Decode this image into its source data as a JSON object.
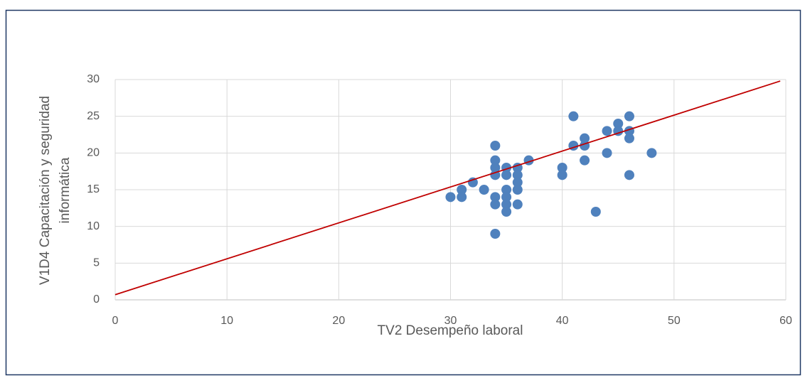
{
  "chart_data": {
    "type": "scatter",
    "xlabel": "TV2 Desempeño laboral",
    "ylabel": [
      "V1D4 Capacitación y seguridad",
      "informática"
    ],
    "x": [
      30,
      31,
      31,
      32,
      33,
      34,
      34,
      34,
      34,
      34,
      34,
      34,
      35,
      35,
      35,
      35,
      35,
      35,
      36,
      36,
      36,
      36,
      36,
      37,
      40,
      40,
      41,
      41,
      42,
      42,
      42,
      43,
      44,
      44,
      45,
      45,
      46,
      46,
      46,
      46,
      48
    ],
    "values": [
      14,
      15,
      14,
      16,
      15,
      21,
      19,
      18,
      17,
      14,
      13,
      9,
      18,
      17,
      15,
      14,
      13,
      12,
      18,
      17,
      16,
      15,
      13,
      19,
      18,
      17,
      25,
      21,
      22,
      21,
      19,
      12,
      23,
      20,
      24,
      23,
      25,
      23,
      22,
      17,
      20
    ],
    "color": "#4f81bd",
    "trendline": {
      "x": [
        0,
        59.5
      ],
      "y": [
        0.7,
        29.8
      ],
      "color": "#c00000"
    },
    "xlim": [
      0,
      60
    ],
    "xticks": [
      0,
      10,
      20,
      30,
      40,
      50,
      60
    ],
    "ylim": [
      0,
      30
    ],
    "yticks": [
      0,
      5,
      10,
      15,
      20,
      25,
      30
    ],
    "grid": true
  }
}
